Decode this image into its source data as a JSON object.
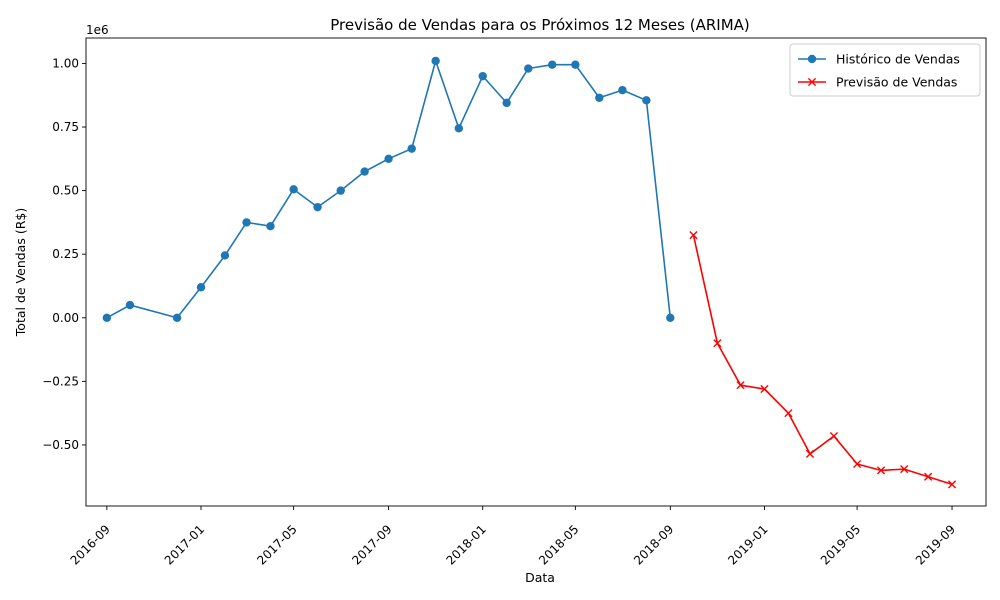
{
  "chart_data": {
    "type": "line",
    "title": "Previsão de Vendas para os Próximos 12 Meses (ARIMA)",
    "xlabel": "Data",
    "ylabel": "Total de Vendas (R$)",
    "y_offset_text": "1e6",
    "y_scale_factor": 1000000,
    "ylim": [
      -0.74,
      1.1
    ],
    "xlim": [
      "2016-08-05",
      "2019-10-15"
    ],
    "y_ticks": [
      -0.5,
      -0.25,
      0.0,
      0.25,
      0.5,
      0.75,
      1.0
    ],
    "y_tick_labels": [
      "−0.50",
      "−0.25",
      "0.00",
      "0.25",
      "0.50",
      "0.75",
      "1.00"
    ],
    "x_ticks": [
      "2016-09-01",
      "2017-01-01",
      "2017-05-01",
      "2017-09-01",
      "2018-01-01",
      "2018-05-01",
      "2018-09-01",
      "2019-01-01",
      "2019-05-01",
      "2019-09-01"
    ],
    "x_tick_labels": [
      "2016-09",
      "2017-01",
      "2017-05",
      "2017-09",
      "2018-01",
      "2018-05",
      "2018-09",
      "2019-01",
      "2019-05",
      "2019-09"
    ],
    "grid": false,
    "legend_position": "top-right",
    "series": [
      {
        "name": "Histórico de Vendas",
        "color": "#1f77b4",
        "marker": "circle",
        "points": [
          {
            "x": "2016-09-01",
            "y": 0.0
          },
          {
            "x": "2016-10-01",
            "y": 0.05
          },
          {
            "x": "2016-12-01",
            "y": 0.0
          },
          {
            "x": "2017-01-01",
            "y": 0.12
          },
          {
            "x": "2017-02-01",
            "y": 0.245
          },
          {
            "x": "2017-03-01",
            "y": 0.375
          },
          {
            "x": "2017-04-01",
            "y": 0.36
          },
          {
            "x": "2017-05-01",
            "y": 0.505
          },
          {
            "x": "2017-06-01",
            "y": 0.435
          },
          {
            "x": "2017-07-01",
            "y": 0.5
          },
          {
            "x": "2017-08-01",
            "y": 0.575
          },
          {
            "x": "2017-09-01",
            "y": 0.625
          },
          {
            "x": "2017-10-01",
            "y": 0.665
          },
          {
            "x": "2017-11-01",
            "y": 1.01
          },
          {
            "x": "2017-12-01",
            "y": 0.745
          },
          {
            "x": "2018-01-01",
            "y": 0.95
          },
          {
            "x": "2018-02-01",
            "y": 0.845
          },
          {
            "x": "2018-03-01",
            "y": 0.98
          },
          {
            "x": "2018-04-01",
            "y": 0.995
          },
          {
            "x": "2018-05-01",
            "y": 0.995
          },
          {
            "x": "2018-06-01",
            "y": 0.865
          },
          {
            "x": "2018-07-01",
            "y": 0.895
          },
          {
            "x": "2018-08-01",
            "y": 0.855
          },
          {
            "x": "2018-09-01",
            "y": 0.0
          }
        ]
      },
      {
        "name": "Previsão de Vendas",
        "color": "#ff0000",
        "marker": "x",
        "points": [
          {
            "x": "2018-10-01",
            "y": 0.325
          },
          {
            "x": "2018-11-01",
            "y": -0.1
          },
          {
            "x": "2018-12-01",
            "y": -0.265
          },
          {
            "x": "2019-01-01",
            "y": -0.28
          },
          {
            "x": "2019-02-01",
            "y": -0.375
          },
          {
            "x": "2019-03-01",
            "y": -0.535
          },
          {
            "x": "2019-04-01",
            "y": -0.465
          },
          {
            "x": "2019-05-01",
            "y": -0.575
          },
          {
            "x": "2019-06-01",
            "y": -0.6
          },
          {
            "x": "2019-07-01",
            "y": -0.595
          },
          {
            "x": "2019-08-01",
            "y": -0.625
          },
          {
            "x": "2019-09-01",
            "y": -0.655
          }
        ]
      }
    ]
  }
}
